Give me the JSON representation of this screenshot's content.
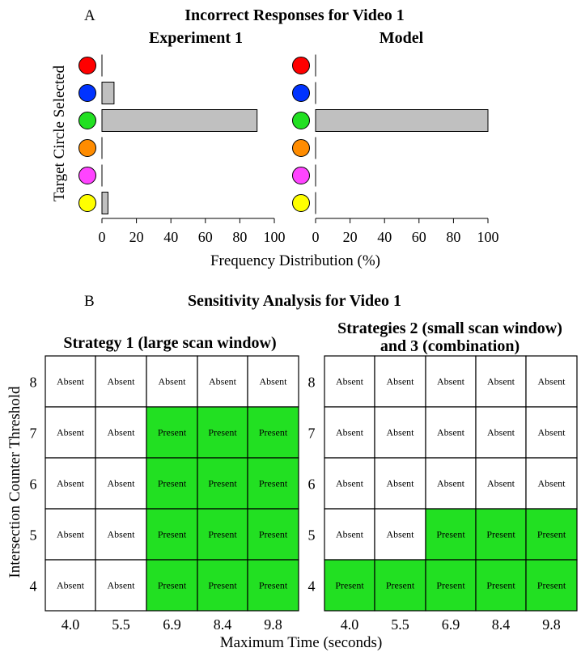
{
  "panel_a": {
    "letter": "A",
    "title": "Incorrect Responses for Video 1",
    "ylabel": "Target Circle Selected",
    "xlabel": "Frequency Distribution (%)"
  },
  "panel_b": {
    "letter": "B",
    "title": "Sensitivity Analysis for Video 1",
    "ylabel": "Intersection Counter Threshold",
    "xlabel": "Maximum Time (seconds)"
  },
  "colors": {
    "bar": "#c0c0c0",
    "present": "#22e022",
    "absent": "#ffffff",
    "circles": [
      "#ff0000",
      "#0033ff",
      "#22e022",
      "#ff8c00",
      "#ff44ff",
      "#ffff00"
    ]
  },
  "chart_data": [
    {
      "type": "bar",
      "orientation": "horizontal",
      "title": "Experiment 1",
      "categories": [
        "red",
        "blue",
        "green",
        "orange",
        "magenta",
        "yellow"
      ],
      "values": [
        0,
        7,
        90,
        0,
        0,
        3.5
      ],
      "xlim": [
        0,
        100
      ],
      "xticks": [
        "0",
        "20",
        "40",
        "60",
        "80",
        "100"
      ]
    },
    {
      "type": "bar",
      "orientation": "horizontal",
      "title": "Model",
      "categories": [
        "red",
        "blue",
        "green",
        "orange",
        "magenta",
        "yellow"
      ],
      "values": [
        0,
        0,
        100,
        0,
        0,
        0
      ],
      "xlim": [
        0,
        100
      ],
      "xticks": [
        "0",
        "20",
        "40",
        "60",
        "80",
        "100"
      ]
    },
    {
      "type": "heatmap",
      "title": "Strategy 1 (large scan window)",
      "x": [
        "4.0",
        "5.5",
        "6.9",
        "8.4",
        "9.8"
      ],
      "y": [
        "8",
        "7",
        "6",
        "5",
        "4"
      ],
      "values": [
        [
          "Absent",
          "Absent",
          "Absent",
          "Absent",
          "Absent"
        ],
        [
          "Absent",
          "Absent",
          "Present",
          "Present",
          "Present"
        ],
        [
          "Absent",
          "Absent",
          "Present",
          "Present",
          "Present"
        ],
        [
          "Absent",
          "Absent",
          "Present",
          "Present",
          "Present"
        ],
        [
          "Absent",
          "Absent",
          "Present",
          "Present",
          "Present"
        ]
      ]
    },
    {
      "type": "heatmap",
      "title_lines": [
        "Strategies 2 (small scan window)",
        "and 3 (combination)"
      ],
      "x": [
        "4.0",
        "5.5",
        "6.9",
        "8.4",
        "9.8"
      ],
      "y": [
        "8",
        "7",
        "6",
        "5",
        "4"
      ],
      "values": [
        [
          "Absent",
          "Absent",
          "Absent",
          "Absent",
          "Absent"
        ],
        [
          "Absent",
          "Absent",
          "Absent",
          "Absent",
          "Absent"
        ],
        [
          "Absent",
          "Absent",
          "Absent",
          "Absent",
          "Absent"
        ],
        [
          "Absent",
          "Absent",
          "Present",
          "Present",
          "Present"
        ],
        [
          "Present",
          "Present",
          "Present",
          "Present",
          "Present"
        ]
      ]
    }
  ]
}
